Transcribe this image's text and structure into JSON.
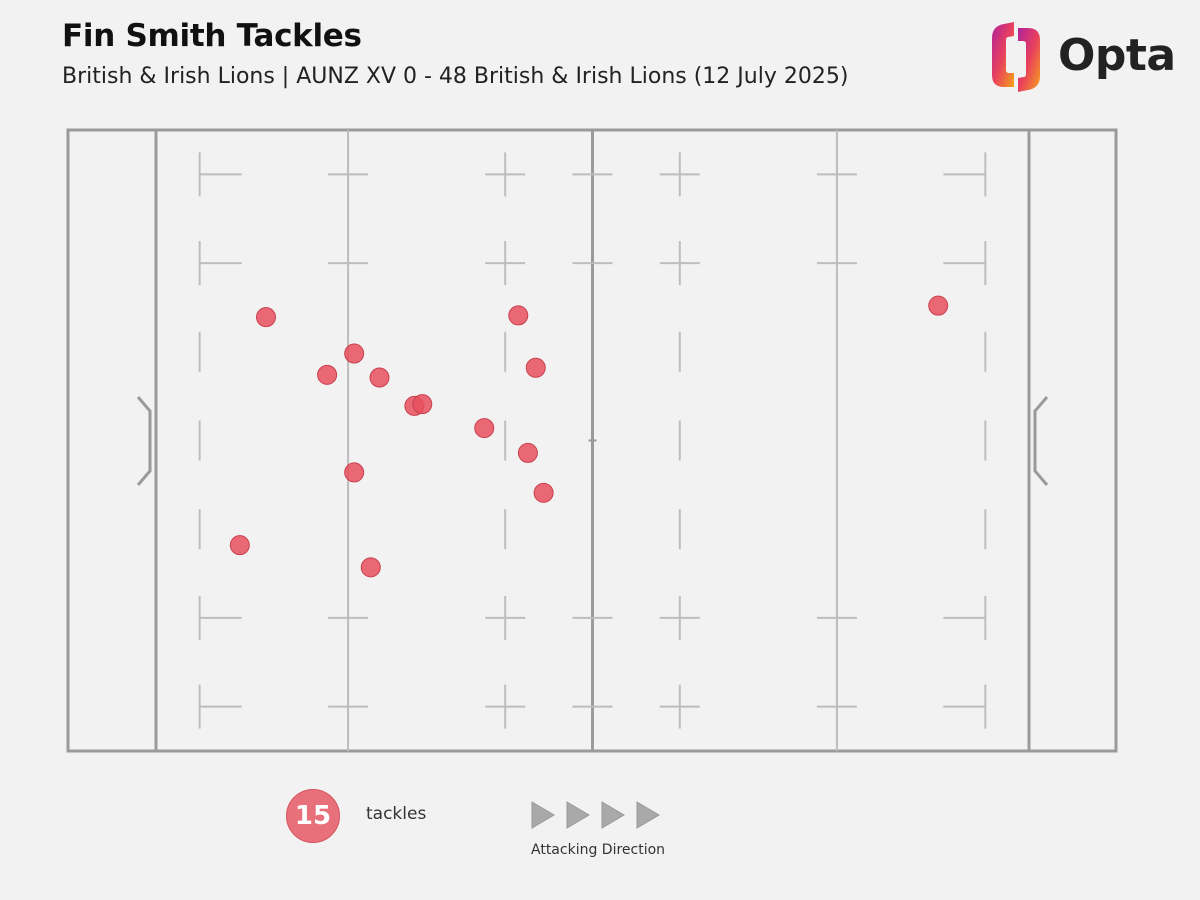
{
  "header": {
    "title": "Fin Smith Tackles",
    "subtitle": "British & Irish Lions | AUNZ XV 0 - 48 British & Irish Lions (12 July 2025)"
  },
  "logo": {
    "text": "Opta",
    "icon": "opta-logo-icon"
  },
  "legend": {
    "count": "15",
    "label": "tackles",
    "direction_label": "Attacking Direction",
    "direction_icon": "triangle-arrow-right-icon"
  },
  "colors": {
    "marker_fill": "#e8505e",
    "marker_stroke": "#c9404d",
    "pitch_line": "#9a9a9a",
    "pitch_mark": "#bdbdbd",
    "background": "#f2f2f2"
  },
  "chart_data": {
    "type": "scatter",
    "title": "Fin Smith Tackles",
    "description_axis": "pitch coordinates: x = metres from left try line (0-100), y = metres from top touchline (0-70)",
    "xlim": [
      0,
      100
    ],
    "ylim": [
      0,
      70
    ],
    "points": [
      {
        "x": 12.6,
        "y": 21.1
      },
      {
        "x": 19.6,
        "y": 27.6
      },
      {
        "x": 22.7,
        "y": 25.2
      },
      {
        "x": 25.6,
        "y": 27.9
      },
      {
        "x": 29.6,
        "y": 31.1
      },
      {
        "x": 30.5,
        "y": 30.9
      },
      {
        "x": 37.6,
        "y": 33.6
      },
      {
        "x": 41.5,
        "y": 20.9
      },
      {
        "x": 43.5,
        "y": 26.8
      },
      {
        "x": 42.6,
        "y": 36.4
      },
      {
        "x": 44.4,
        "y": 40.9
      },
      {
        "x": 22.7,
        "y": 38.6
      },
      {
        "x": 9.6,
        "y": 46.8
      },
      {
        "x": 24.6,
        "y": 49.3
      },
      {
        "x": 89.6,
        "y": 19.8
      }
    ],
    "count": 15
  }
}
